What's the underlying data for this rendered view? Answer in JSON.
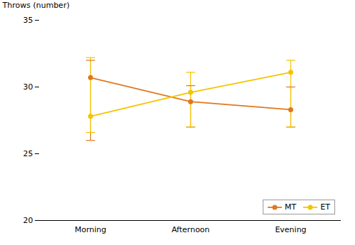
{
  "chart_data": {
    "type": "line",
    "categories": [
      "Morning",
      "Afternoon",
      "Evening"
    ],
    "ylabel": "Throws (number)",
    "ylim": [
      20,
      35
    ],
    "yticks": [
      20,
      25,
      30,
      35
    ],
    "grid": false,
    "legend": "lower right",
    "marker": "circle",
    "series": [
      {
        "name": "MT",
        "color": "#E07820",
        "values": [
          30.7,
          28.9,
          28.3
        ],
        "error_lower": [
          4.7,
          1.9,
          1.3
        ],
        "error_upper": [
          1.3,
          1.2,
          1.7
        ]
      },
      {
        "name": "ET",
        "color": "#F5C400",
        "values": [
          27.8,
          29.6,
          31.1
        ],
        "error_lower": [
          1.2,
          2.6,
          4.1
        ],
        "error_upper": [
          4.4,
          1.5,
          0.9
        ]
      }
    ]
  }
}
